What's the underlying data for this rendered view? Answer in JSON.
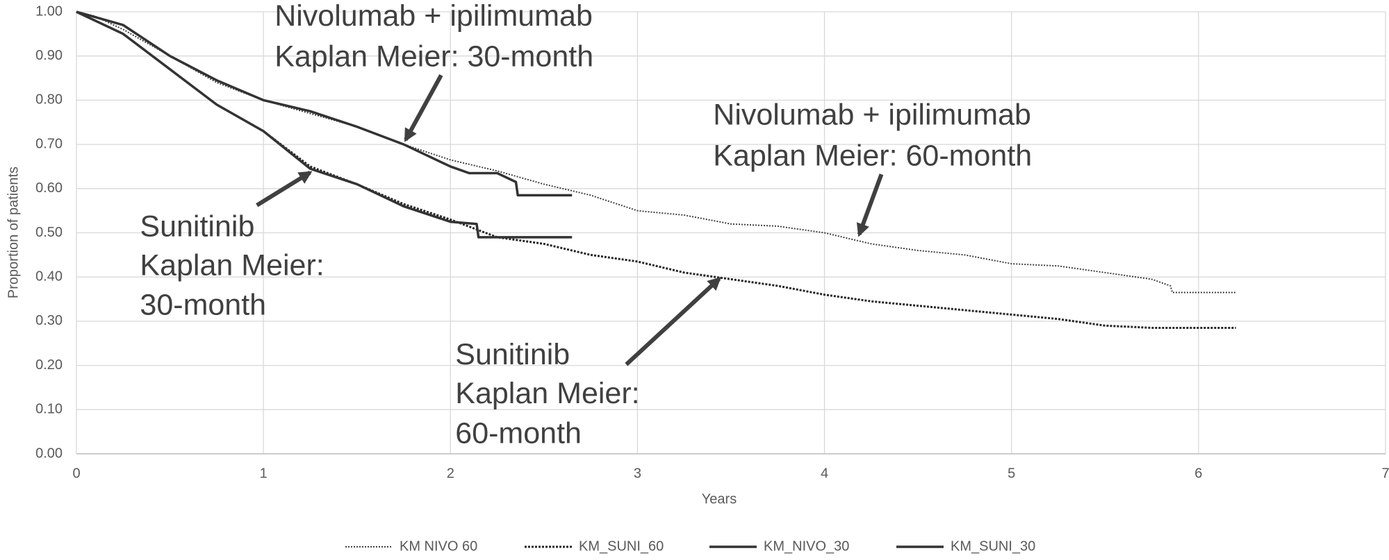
{
  "chart_data": {
    "type": "line",
    "xlabel": "Years",
    "ylabel": "Proportion of patients",
    "xlim": [
      0,
      7
    ],
    "xticks": [
      0,
      1,
      2,
      3,
      4,
      5,
      6,
      7
    ],
    "ylim": [
      0,
      1
    ],
    "yticks": [
      {
        "value": 0,
        "label": "0.00"
      },
      {
        "value": 0.1,
        "label": "0.10"
      },
      {
        "value": 0.2,
        "label": "0.20"
      },
      {
        "value": 0.3,
        "label": "0.30"
      },
      {
        "value": 0.4,
        "label": "0.40"
      },
      {
        "value": 0.5,
        "label": "0.50"
      },
      {
        "value": 0.6,
        "label": "0.60"
      },
      {
        "value": 0.7,
        "label": "0.70"
      },
      {
        "value": 0.8,
        "label": "0.80"
      },
      {
        "value": 0.9,
        "label": "0.90"
      },
      {
        "value": 1,
        "label": "1.00"
      }
    ],
    "grid": true,
    "legend": "bottom",
    "series": [
      {
        "name": "KM NIVO 60",
        "color": "#404040",
        "dash": "dotted-thin",
        "x": [
          0,
          0.1,
          0.25,
          0.5,
          0.75,
          1.0,
          1.25,
          1.5,
          1.75,
          2.0,
          2.25,
          2.5,
          2.75,
          3.0,
          3.25,
          3.5,
          3.75,
          4.0,
          4.25,
          4.5,
          4.75,
          5.0,
          5.25,
          5.5,
          5.75,
          5.85,
          5.86,
          6.2
        ],
        "values": [
          1.0,
          0.99,
          0.96,
          0.9,
          0.84,
          0.8,
          0.77,
          0.74,
          0.7,
          0.665,
          0.64,
          0.61,
          0.585,
          0.55,
          0.54,
          0.52,
          0.515,
          0.5,
          0.475,
          0.46,
          0.45,
          0.43,
          0.425,
          0.41,
          0.395,
          0.38,
          0.365,
          0.365
        ]
      },
      {
        "name": "KM_SUNI_60",
        "color": "#262626",
        "dash": "dotted-thick",
        "x": [
          0,
          0.25,
          0.5,
          0.75,
          1.0,
          1.25,
          1.5,
          1.75,
          2.0,
          2.25,
          2.5,
          2.75,
          3.0,
          3.25,
          3.5,
          3.75,
          4.0,
          4.25,
          4.5,
          4.75,
          5.0,
          5.25,
          5.5,
          5.75,
          6.2
        ],
        "values": [
          1.0,
          0.95,
          0.87,
          0.79,
          0.73,
          0.65,
          0.61,
          0.565,
          0.53,
          0.49,
          0.475,
          0.45,
          0.435,
          0.41,
          0.395,
          0.38,
          0.36,
          0.345,
          0.335,
          0.325,
          0.315,
          0.305,
          0.29,
          0.285,
          0.285
        ]
      },
      {
        "name": "KM_NIVO_30",
        "color": "#333333",
        "dash": "solid",
        "x": [
          0,
          0.25,
          0.5,
          0.75,
          1.0,
          1.25,
          1.5,
          1.75,
          2.0,
          2.1,
          2.25,
          2.35,
          2.36,
          2.65
        ],
        "values": [
          1.0,
          0.97,
          0.9,
          0.845,
          0.8,
          0.775,
          0.74,
          0.7,
          0.65,
          0.635,
          0.635,
          0.615,
          0.585,
          0.585
        ]
      },
      {
        "name": "KM_SUNI_30",
        "color": "#333333",
        "dash": "solid",
        "x": [
          0,
          0.25,
          0.5,
          0.75,
          1.0,
          1.25,
          1.5,
          1.75,
          2.0,
          2.14,
          2.15,
          2.65
        ],
        "values": [
          1.0,
          0.95,
          0.87,
          0.79,
          0.73,
          0.645,
          0.61,
          0.56,
          0.525,
          0.52,
          0.49,
          0.49
        ]
      }
    ],
    "annotations": [
      {
        "lines": [
          "Nivolumab + ipilimumab",
          "Kaplan Meier: 30-month"
        ]
      },
      {
        "lines": [
          "Nivolumab + ipilimumab",
          "Kaplan Meier: 60-month"
        ]
      },
      {
        "lines": [
          "Sunitinib",
          "Kaplan Meier:",
          "30-month"
        ]
      },
      {
        "lines": [
          "Sunitinib",
          "Kaplan Meier:",
          "60-month"
        ]
      }
    ]
  }
}
